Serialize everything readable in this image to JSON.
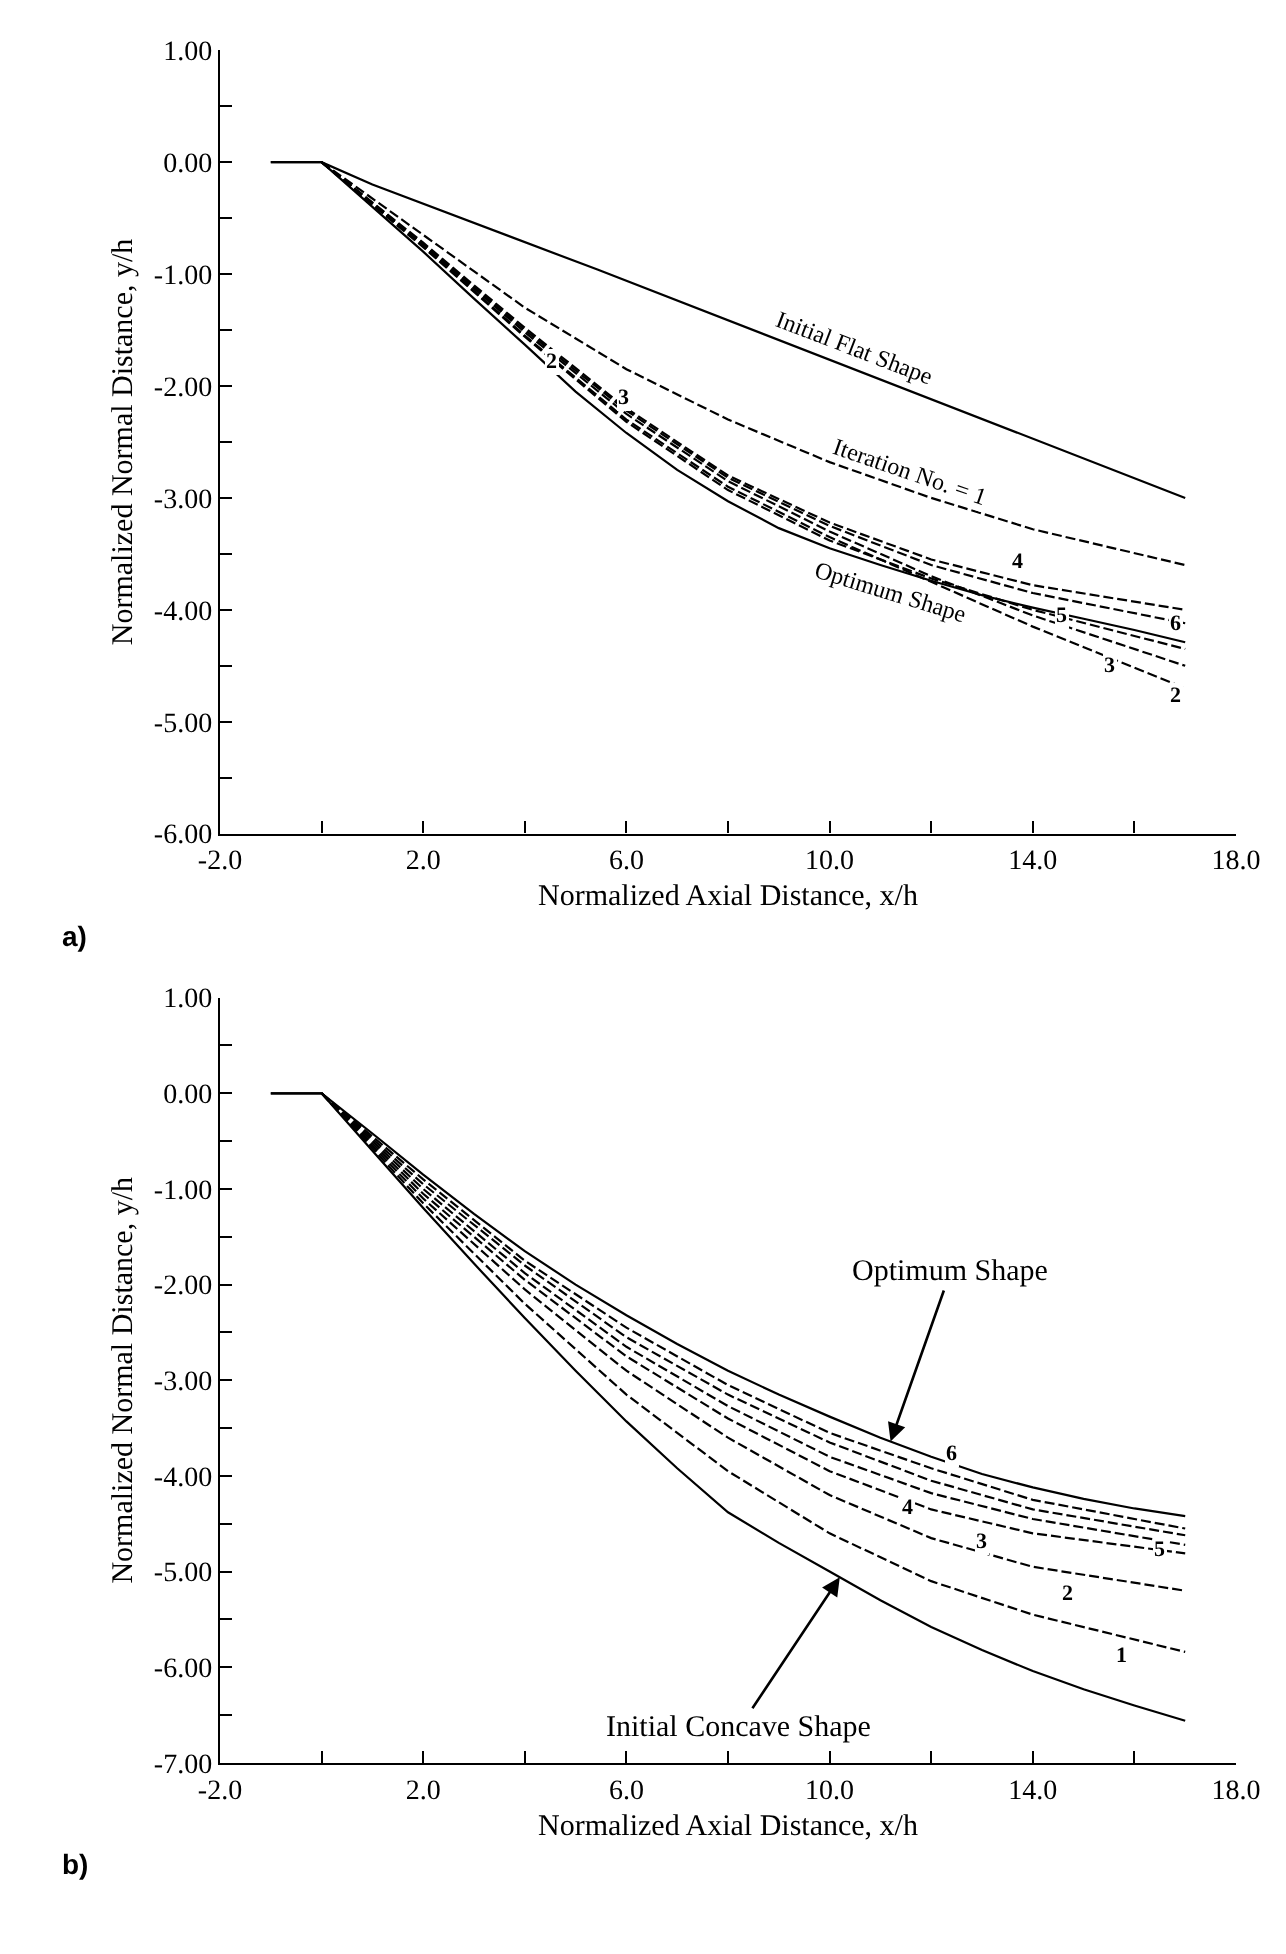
{
  "chart_data": [
    {
      "type": "line",
      "xlabel": "Normalized Axial Distance, x/h",
      "ylabel": "Normalized Normal Distance, y/h",
      "xlim": [
        -2,
        18
      ],
      "xticks": [
        {
          "value": -2,
          "label": "-2.0"
        },
        {
          "value": 0,
          "label": null
        },
        {
          "value": 2,
          "label": "2.0"
        },
        {
          "value": 4,
          "label": null
        },
        {
          "value": 6,
          "label": "6.0"
        },
        {
          "value": 8,
          "label": null
        },
        {
          "value": 10,
          "label": "10.0"
        },
        {
          "value": 12,
          "label": null
        },
        {
          "value": 14,
          "label": "14.0"
        },
        {
          "value": 16,
          "label": null
        },
        {
          "value": 18,
          "label": "18.0"
        }
      ],
      "ylim": [
        -6,
        1
      ],
      "yticks": [
        {
          "value": -6,
          "label": "-6.00"
        },
        {
          "value": -5.5,
          "label": null
        },
        {
          "value": -5,
          "label": "-5.00"
        },
        {
          "value": -4.5,
          "label": null
        },
        {
          "value": -4,
          "label": "-4.00"
        },
        {
          "value": -3.5,
          "label": null
        },
        {
          "value": -3,
          "label": "-3.00"
        },
        {
          "value": -2.5,
          "label": null
        },
        {
          "value": -2,
          "label": "-2.00"
        },
        {
          "value": -1.5,
          "label": null
        },
        {
          "value": -1,
          "label": "-1.00"
        },
        {
          "value": -0.5,
          "label": null
        },
        {
          "value": 0,
          "label": "0.00"
        },
        {
          "value": 0.5,
          "label": null
        },
        {
          "value": 1,
          "label": "1.00"
        }
      ],
      "series": [
        {
          "color": "#000000",
          "line_style": "solid",
          "x": [
            -1,
            0,
            1,
            5.43,
            17
          ],
          "values": [
            0,
            0,
            -0.2,
            -0.96,
            -3.0
          ]
        },
        {
          "color": "#000000",
          "line_style": "solid",
          "x": [
            -1,
            0,
            1,
            2,
            3,
            4,
            5,
            6,
            7,
            8,
            9,
            10,
            11,
            12,
            13,
            14,
            15,
            16,
            17
          ],
          "values": [
            0,
            0,
            -0.4,
            -0.8,
            -1.22,
            -1.63,
            -2.05,
            -2.42,
            -2.75,
            -3.03,
            -3.27,
            -3.45,
            -3.6,
            -3.74,
            -3.87,
            -3.98,
            -4.08,
            -4.18,
            -4.29
          ]
        },
        {
          "color": "#000000",
          "line_style": "dashed",
          "x": [
            0,
            2,
            4,
            6,
            8,
            10,
            12,
            14,
            17
          ],
          "values": [
            0,
            -0.65,
            -1.3,
            -1.85,
            -2.3,
            -2.68,
            -3.0,
            -3.28,
            -3.6
          ]
        },
        {
          "color": "#000000",
          "line_style": "dashed",
          "x": [
            0,
            2,
            4,
            6,
            8,
            10,
            12,
            14,
            17
          ],
          "values": [
            0,
            -0.75,
            -1.55,
            -2.3,
            -2.9,
            -3.35,
            -3.75,
            -4.15,
            -4.7
          ]
        },
        {
          "color": "#000000",
          "line_style": "dashed",
          "x": [
            0,
            2,
            4,
            6,
            8,
            10,
            12,
            14,
            17
          ],
          "values": [
            0,
            -0.74,
            -1.52,
            -2.25,
            -2.85,
            -3.3,
            -3.7,
            -4.05,
            -4.5
          ]
        },
        {
          "color": "#000000",
          "line_style": "dashed",
          "x": [
            0,
            2,
            4,
            6,
            8,
            10,
            12,
            14,
            17
          ],
          "values": [
            0,
            -0.72,
            -1.48,
            -2.2,
            -2.8,
            -3.22,
            -3.55,
            -3.78,
            -4.0
          ]
        },
        {
          "color": "#000000",
          "line_style": "dashed",
          "x": [
            0,
            2,
            4,
            6,
            8,
            10,
            12,
            14,
            17
          ],
          "values": [
            0,
            -0.73,
            -1.5,
            -2.22,
            -2.82,
            -3.25,
            -3.6,
            -3.85,
            -4.12
          ]
        },
        {
          "color": "#000000",
          "line_style": "dashed",
          "x": [
            0,
            2,
            4,
            6,
            8,
            10,
            12,
            14,
            17
          ],
          "values": [
            0,
            -0.76,
            -1.56,
            -2.32,
            -2.93,
            -3.38,
            -3.72,
            -4.0,
            -4.35
          ]
        }
      ],
      "annotations": [
        "a)",
        {
          "text": "Initial Flat Shape",
          "x": 10.5,
          "y": -1.85
        },
        {
          "text": "Iteration No. = 1",
          "x": 11.6,
          "y": -2.94
        },
        {
          "text": "Optimum Shape",
          "x": 11.2,
          "y": -3.63
        },
        {
          "text": "2",
          "x": 4.9,
          "y": -1.89
        },
        {
          "text": "3",
          "x": 5.5,
          "y": -2.07
        },
        {
          "text": "4",
          "x": 13.7,
          "y": -3.75
        },
        {
          "text": "5",
          "x": 14.5,
          "y": -3.9
        },
        {
          "text": "3",
          "x": 15.9,
          "y": -4.34
        },
        {
          "text": "6",
          "x": 16.5,
          "y": -4.29
        },
        {
          "text": "2",
          "x": 16.5,
          "y": -4.61
        }
      ]
    },
    {
      "type": "line",
      "xlabel": "Normalized Axial Distance, x/h",
      "ylabel": "Normalized Normal Distance, y/h",
      "xlim": [
        -2,
        18
      ],
      "xticks": [
        {
          "value": -2,
          "label": "-2.0"
        },
        {
          "value": 0,
          "label": null
        },
        {
          "value": 2,
          "label": "2.0"
        },
        {
          "value": 4,
          "label": null
        },
        {
          "value": 6,
          "label": "6.0"
        },
        {
          "value": 8,
          "label": null
        },
        {
          "value": 10,
          "label": "10.0"
        },
        {
          "value": 12,
          "label": null
        },
        {
          "value": 14,
          "label": "14.0"
        },
        {
          "value": 16,
          "label": null
        },
        {
          "value": 18,
          "label": "18.0"
        }
      ],
      "ylim": [
        -7,
        1
      ],
      "yticks": [
        {
          "value": -7,
          "label": "-7.00"
        },
        {
          "value": -6.5,
          "label": null
        },
        {
          "value": -6,
          "label": "-6.00"
        },
        {
          "value": -5.5,
          "label": null
        },
        {
          "value": -5,
          "label": "-5.00"
        },
        {
          "value": -4.5,
          "label": null
        },
        {
          "value": -4,
          "label": "-4.00"
        },
        {
          "value": -3.5,
          "label": null
        },
        {
          "value": -3,
          "label": "-3.00"
        },
        {
          "value": -2.5,
          "label": null
        },
        {
          "value": -2,
          "label": "-2.00"
        },
        {
          "value": -1.5,
          "label": null
        },
        {
          "value": -1,
          "label": "-1.00"
        },
        {
          "value": -0.5,
          "label": null
        },
        {
          "value": 0,
          "label": "0.00"
        },
        {
          "value": 0.5,
          "label": null
        },
        {
          "value": 1,
          "label": "1.00"
        }
      ],
      "series": [
        {
          "color": "#000000",
          "line_style": "solid",
          "x": [
            -1,
            0,
            1,
            2,
            3,
            4,
            5,
            6,
            7,
            8,
            9,
            10,
            11,
            12,
            13,
            14,
            15,
            16,
            17
          ],
          "values": [
            0,
            0,
            -0.42,
            -0.85,
            -1.26,
            -1.65,
            -2.0,
            -2.32,
            -2.62,
            -2.9,
            -3.15,
            -3.38,
            -3.6,
            -3.8,
            -3.98,
            -4.12,
            -4.24,
            -4.34,
            -4.42
          ]
        },
        {
          "color": "#000000",
          "line_style": "solid",
          "x": [
            -1,
            0,
            1,
            2,
            3,
            4,
            5,
            6,
            7,
            8,
            9,
            10,
            11,
            12,
            13,
            14,
            15,
            16,
            17
          ],
          "values": [
            0,
            0,
            -0.6,
            -1.2,
            -1.78,
            -2.35,
            -2.9,
            -3.43,
            -3.92,
            -4.38,
            -4.7,
            -5.0,
            -5.3,
            -5.58,
            -5.82,
            -6.04,
            -6.23,
            -6.4,
            -6.56
          ]
        },
        {
          "color": "#000000",
          "line_style": "dashed",
          "x": [
            0,
            2,
            4,
            6,
            8,
            10,
            12,
            14,
            17
          ],
          "values": [
            0,
            -1.15,
            -2.2,
            -3.15,
            -3.95,
            -4.6,
            -5.1,
            -5.45,
            -5.84
          ]
        },
        {
          "color": "#000000",
          "line_style": "dashed",
          "x": [
            0,
            2,
            4,
            6,
            8,
            10,
            12,
            14,
            17
          ],
          "values": [
            0,
            -1.1,
            -2.05,
            -2.9,
            -3.6,
            -4.2,
            -4.65,
            -4.95,
            -5.2
          ]
        },
        {
          "color": "#000000",
          "line_style": "dashed",
          "x": [
            0,
            2,
            4,
            6,
            8,
            10,
            12,
            14,
            17
          ],
          "values": [
            0,
            -1.05,
            -1.95,
            -2.75,
            -3.4,
            -3.95,
            -4.35,
            -4.6,
            -4.81
          ]
        },
        {
          "color": "#000000",
          "line_style": "dashed",
          "x": [
            0,
            2,
            4,
            6,
            8,
            10,
            12,
            14,
            17
          ],
          "values": [
            0,
            -1.0,
            -1.88,
            -2.65,
            -3.27,
            -3.8,
            -4.18,
            -4.45,
            -4.72
          ]
        },
        {
          "color": "#000000",
          "line_style": "dashed",
          "x": [
            0,
            2,
            4,
            6,
            8,
            10,
            12,
            14,
            17
          ],
          "values": [
            0,
            -0.95,
            -1.8,
            -2.55,
            -3.15,
            -3.65,
            -4.05,
            -4.35,
            -4.62
          ]
        },
        {
          "color": "#000000",
          "line_style": "dashed",
          "x": [
            0,
            2,
            4,
            6,
            8,
            10,
            12,
            14,
            17
          ],
          "values": [
            0,
            -0.9,
            -1.75,
            -2.45,
            -3.05,
            -3.55,
            -3.92,
            -4.25,
            -4.55
          ]
        }
      ],
      "annotations": [
        "b)",
        {
          "text": "Optimum Shape",
          "x": 11.2,
          "y": -3.64
        },
        {
          "text": "Initial Concave Shape",
          "x": 10.2,
          "y": -5.06
        },
        {
          "text": "1",
          "x": 15.75,
          "y": -5.68
        },
        {
          "text": "2",
          "x": 14.7,
          "y": -5.01
        },
        {
          "text": "3",
          "x": 13.0,
          "y": -4.48
        },
        {
          "text": "4",
          "x": 11.85,
          "y": -4.15
        },
        {
          "text": "5",
          "x": 16.5,
          "y": -4.58
        },
        {
          "text": "6",
          "x": 12.4,
          "y": -3.99
        }
      ]
    }
  ]
}
